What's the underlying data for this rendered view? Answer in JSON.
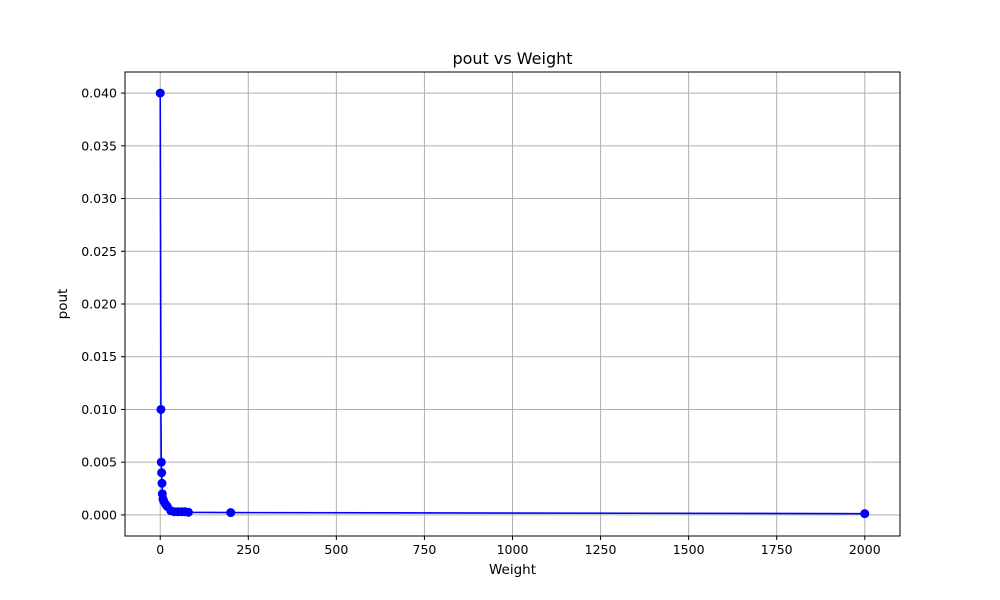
{
  "chart_data": {
    "type": "line",
    "title": "pout vs Weight",
    "xlabel": "Weight",
    "ylabel": "pout",
    "xlim": [
      -100,
      2100
    ],
    "ylim": [
      -0.002,
      0.042
    ],
    "xticks": [
      0,
      250,
      500,
      750,
      1000,
      1250,
      1500,
      1750,
      2000
    ],
    "yticks": [
      0.0,
      0.005,
      0.01,
      0.015,
      0.02,
      0.025,
      0.03,
      0.035,
      0.04
    ],
    "xtick_labels": [
      "0",
      "250",
      "500",
      "750",
      "1000",
      "1250",
      "1500",
      "1750",
      "2000"
    ],
    "ytick_labels": [
      "0.000",
      "0.005",
      "0.010",
      "0.015",
      "0.020",
      "0.025",
      "0.030",
      "0.035",
      "0.040"
    ],
    "grid": true,
    "series": [
      {
        "color": "#0000ff",
        "marker": "circle",
        "x": [
          0,
          2,
          3,
          4,
          5,
          6,
          8,
          10,
          15,
          20,
          30,
          40,
          50,
          60,
          70,
          80,
          200,
          2000
        ],
        "y": [
          0.04,
          0.01,
          0.005,
          0.004,
          0.003,
          0.002,
          0.0015,
          0.0013,
          0.001,
          0.0008,
          0.0004,
          0.0003,
          0.0003,
          0.0003,
          0.0003,
          0.00025,
          0.00022,
          0.00012
        ]
      }
    ]
  }
}
